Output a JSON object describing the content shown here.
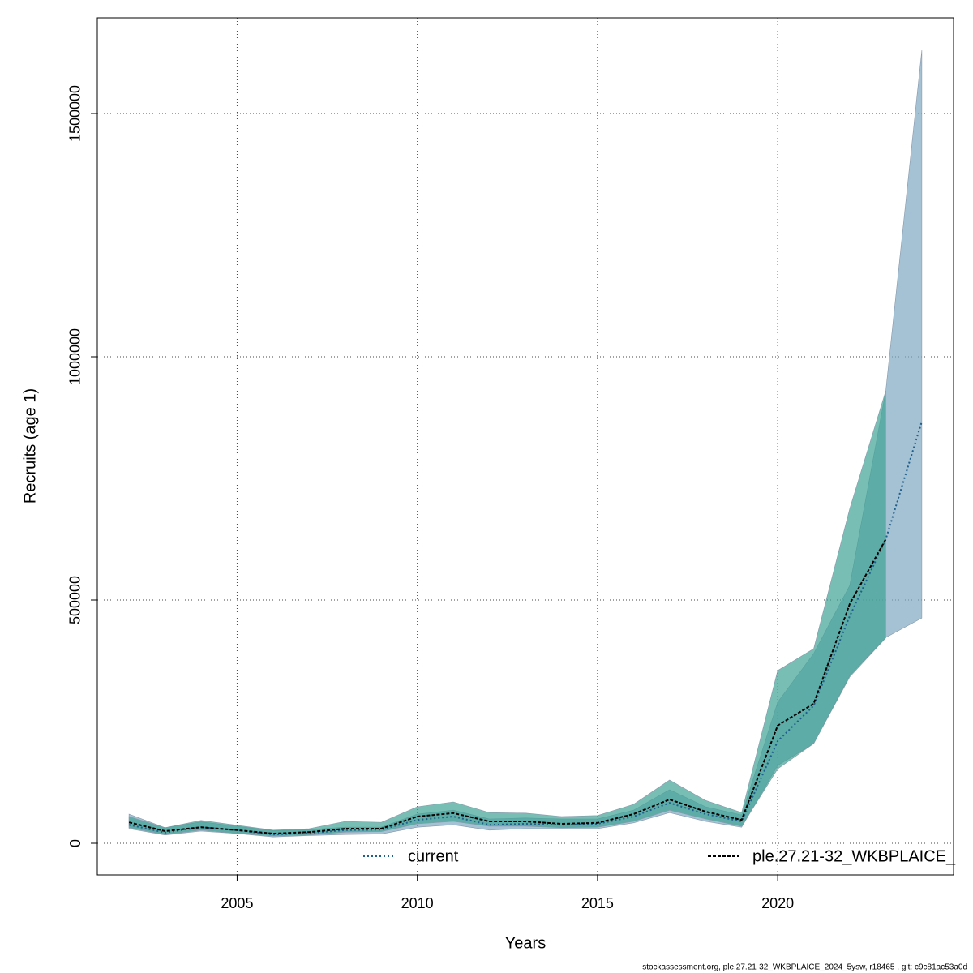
{
  "chart_data": {
    "type": "band-line",
    "xlabel": "Years",
    "ylabel": "Recruits (age 1)",
    "footnote": "stockassessment.org, ple.27.21-32_WKBPLAICE_2024_5ysw, r18465 , git: c9c81ac53a0d",
    "xlim": [
      2001.12,
      2024.88
    ],
    "xticks": [
      2005,
      2010,
      2015,
      2020
    ],
    "ylim": [
      -65000,
      1696667
    ],
    "yticks": [
      0,
      500000,
      1000000,
      1500000
    ],
    "grid": true,
    "legend": "bottom",
    "series": [
      {
        "name": "current",
        "color": "#1f5f8b",
        "band_color": "#7fa6c2",
        "line_style": "dotted",
        "x": [
          2002,
          2003,
          2004,
          2005,
          2006,
          2007,
          2008,
          2009,
          2010,
          2011,
          2012,
          2013,
          2014,
          2015,
          2016,
          2017,
          2018,
          2019,
          2020,
          2021,
          2022,
          2023,
          2024
        ],
        "values": [
          38000,
          22000,
          33000,
          27000,
          18000,
          21000,
          27000,
          28000,
          48000,
          55000,
          38000,
          40000,
          38000,
          40000,
          55000,
          83000,
          60000,
          45000,
          210000,
          283000,
          467000,
          625000,
          867000
        ],
        "lower": [
          30000,
          17000,
          25000,
          20000,
          13000,
          16000,
          18000,
          19000,
          33000,
          38000,
          27000,
          30000,
          30000,
          30000,
          42000,
          63000,
          45000,
          33000,
          160000,
          205000,
          345000,
          423000,
          463000
        ],
        "upper": [
          60000,
          32000,
          44000,
          35000,
          26000,
          28000,
          33000,
          33000,
          60000,
          68000,
          50000,
          52000,
          50000,
          50000,
          68000,
          110000,
          75000,
          58000,
          290000,
          390000,
          530000,
          930000,
          1630000
        ]
      },
      {
        "name": "ple.27.21-32_WKBPLAICE_",
        "color": "#000000",
        "band_color": "#3fa394",
        "line_style": "dashed",
        "x": [
          2002,
          2003,
          2004,
          2005,
          2006,
          2007,
          2008,
          2009,
          2010,
          2011,
          2012,
          2013,
          2014,
          2015,
          2016,
          2017,
          2018,
          2019,
          2020,
          2021,
          2022,
          2023
        ],
        "values": [
          43000,
          25000,
          33000,
          27000,
          20000,
          23000,
          30000,
          30000,
          55000,
          62000,
          45000,
          45000,
          40000,
          42000,
          60000,
          90000,
          65000,
          48000,
          242000,
          287000,
          492000,
          625000
        ],
        "lower": [
          32000,
          18000,
          27000,
          20000,
          15000,
          17000,
          23000,
          24000,
          40000,
          45000,
          35000,
          35000,
          32000,
          33000,
          45000,
          68000,
          50000,
          35000,
          153000,
          205000,
          342000,
          422000
        ],
        "upper": [
          55000,
          32000,
          47000,
          37000,
          27000,
          30000,
          45000,
          43000,
          75000,
          85000,
          63000,
          62000,
          55000,
          57000,
          80000,
          130000,
          88000,
          63000,
          355000,
          400000,
          688000,
          930000
        ]
      }
    ]
  }
}
